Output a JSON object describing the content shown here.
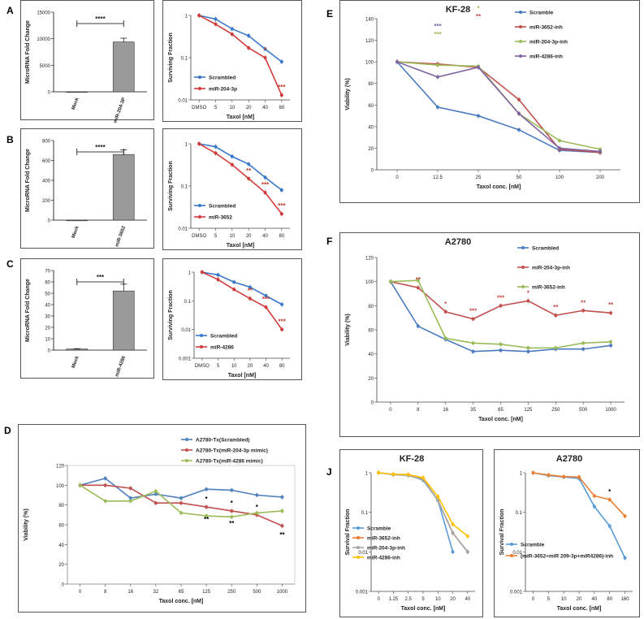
{
  "panel_letters": {
    "A": "A",
    "B": "B",
    "C": "C",
    "D": "D",
    "E": "E",
    "F": "F",
    "J": "J"
  },
  "chart_data": [
    {
      "id": "A1",
      "type": "bar",
      "letter": "A",
      "categories": [
        "Mock",
        "miR-204-3P"
      ],
      "values": [
        0,
        9400
      ],
      "errors": [
        0,
        700
      ],
      "ylabel": "MicroRNA Fold Change",
      "ylim": [
        0,
        15000
      ],
      "yticks": [
        "0",
        "5000",
        "10000",
        "15000"
      ],
      "significance": "****"
    },
    {
      "id": "A2",
      "type": "line",
      "yscale": "log",
      "categories": [
        "DMSO",
        "5",
        "10",
        "20",
        "40",
        "80"
      ],
      "xlabel": "Taxol [nM]",
      "ylabel": "Surviving Fraction",
      "ylim": [
        0.01,
        1
      ],
      "yticks": [
        "0.01",
        "0.1",
        "1"
      ],
      "series": [
        {
          "name": "Scrambled",
          "color": "#3a78c9",
          "values": [
            1,
            0.82,
            0.48,
            0.33,
            0.16,
            0.08
          ]
        },
        {
          "name": "miR-204-3p",
          "color": "#d23b3b",
          "values": [
            1,
            0.62,
            0.36,
            0.17,
            0.1,
            0.013
          ]
        }
      ],
      "annotations": [
        {
          "i": 4,
          "text": "*"
        },
        {
          "i": 5,
          "text": "***"
        }
      ]
    },
    {
      "id": "B1",
      "type": "bar",
      "letter": "B",
      "categories": [
        "Mock",
        "miR-3652"
      ],
      "values": [
        0,
        660
      ],
      "errors": [
        0,
        45
      ],
      "ylabel": "MicroRNA Fold Change",
      "ylim": [
        0,
        800
      ],
      "yticks": [
        "0",
        "200",
        "400",
        "600",
        "800"
      ],
      "significance": "****"
    },
    {
      "id": "B2",
      "type": "line",
      "yscale": "log",
      "categories": [
        "DMSO",
        "5",
        "10",
        "20",
        "40",
        "80"
      ],
      "xlabel": "Taxol [nM]",
      "ylabel": "Surviving Fraction",
      "ylim": [
        0.01,
        1
      ],
      "yticks": [
        "0.01",
        "0.1",
        "1"
      ],
      "series": [
        {
          "name": "Scrambled",
          "color": "#3a78c9",
          "values": [
            1,
            0.85,
            0.5,
            0.33,
            0.16,
            0.08
          ]
        },
        {
          "name": "miR-3652",
          "color": "#d23b3b",
          "values": [
            1,
            0.6,
            0.32,
            0.15,
            0.07,
            0.022
          ]
        }
      ],
      "annotations": [
        {
          "i": 3,
          "text": "**"
        },
        {
          "i": 4,
          "text": "***"
        },
        {
          "i": 5,
          "text": "***"
        }
      ]
    },
    {
      "id": "C1",
      "type": "bar",
      "letter": "C",
      "categories": [
        "Mock",
        "miR-4286"
      ],
      "values": [
        1,
        52
      ],
      "errors": [
        0.3,
        6
      ],
      "ylabel": "MicroRNA Fold Change",
      "ylim": [
        0,
        70
      ],
      "yticks": [
        "0",
        "10",
        "20",
        "30",
        "40",
        "50",
        "60",
        "70"
      ],
      "significance": "***"
    },
    {
      "id": "C2",
      "type": "line",
      "yscale": "log",
      "categories": [
        "DMSO",
        "5",
        "10",
        "20",
        "40",
        "80"
      ],
      "xlabel": "Taxol [nM]",
      "ylabel": "Surviving Fraction",
      "ylim": [
        0.001,
        1
      ],
      "yticks": [
        "0.001",
        "0.01",
        "0.1",
        "1"
      ],
      "series": [
        {
          "name": "Scrambled",
          "color": "#3a78c9",
          "values": [
            1,
            0.8,
            0.45,
            0.3,
            0.15,
            0.075
          ]
        },
        {
          "name": "miR-4286",
          "color": "#d23b3b",
          "values": [
            1,
            0.55,
            0.25,
            0.12,
            0.06,
            0.01
          ]
        }
      ],
      "annotations": [
        {
          "i": 3,
          "text": "**"
        },
        {
          "i": 4,
          "text": "***"
        },
        {
          "i": 5,
          "text": "***"
        }
      ]
    },
    {
      "id": "D",
      "type": "line",
      "letter": "D",
      "categories": [
        "0",
        "8",
        "16",
        "32",
        "65",
        "125",
        "250",
        "500",
        "1000"
      ],
      "xlabel": "Taxol conc. [nM]",
      "ylabel": "Viability (%)",
      "ylim": [
        0,
        120
      ],
      "yticks": [
        "0",
        "20",
        "40",
        "60",
        "80",
        "100",
        "120"
      ],
      "series": [
        {
          "name": "A2780-Tx(Scrambled)",
          "color": "#4f81bd",
          "values": [
            100,
            107,
            87,
            91,
            87,
            96,
            95,
            90,
            88
          ]
        },
        {
          "name": "A2780-Tx(miR-204-3p mimic)",
          "color": "#c0504d",
          "values": [
            100,
            100,
            97,
            82,
            82,
            78,
            74,
            70,
            59
          ]
        },
        {
          "name": "A2780-Tx(miR-4286 mimic)",
          "color": "#9bbb59",
          "values": [
            100,
            84,
            84,
            94,
            72,
            69,
            68,
            72,
            74
          ]
        }
      ],
      "annotations": [
        {
          "i": 5,
          "text": "*",
          "color": "#000"
        },
        {
          "i": 6,
          "text": "*",
          "color": "#000"
        },
        {
          "i": 7,
          "text": "*",
          "color": "#000"
        },
        {
          "i": 5,
          "text": "**",
          "color": "#000",
          "dy": 18
        },
        {
          "i": 6,
          "text": "**",
          "color": "#000",
          "dy": 18
        },
        {
          "i": 8,
          "text": "**",
          "color": "#000",
          "dy": 14
        }
      ]
    },
    {
      "id": "E",
      "type": "line",
      "letter": "E",
      "title": "KF-28",
      "categories": [
        "0",
        "12.5",
        "25",
        "50",
        "100",
        "200"
      ],
      "xlabel": "Taxol conc. [nM]",
      "ylabel": "Viability (%)",
      "ylim": [
        0,
        140
      ],
      "yticks": [
        "0",
        "20",
        "40",
        "60",
        "80",
        "100",
        "120",
        "140"
      ],
      "series": [
        {
          "name": "Scramble",
          "color": "#4a7bbf",
          "values": [
            100,
            58,
            50,
            37,
            18,
            16
          ]
        },
        {
          "name": "miR-3652-inh",
          "color": "#c0504d",
          "values": [
            100,
            98,
            95,
            65,
            19,
            16
          ]
        },
        {
          "name": "miR-204-3p-inh",
          "color": "#9bbb59",
          "values": [
            100,
            97,
            96,
            52,
            27,
            19
          ]
        },
        {
          "name": "miR-4286-inh",
          "color": "#8064a2",
          "values": [
            100,
            86,
            95,
            52,
            20,
            17
          ]
        }
      ],
      "annotations": [
        {
          "i": 1,
          "text": "***",
          "color": "#8064a2",
          "dy": -44
        },
        {
          "i": 1,
          "text": "***",
          "color": "#9bbb59",
          "dy": -34
        },
        {
          "i": 2,
          "text": "***",
          "color": "#8064a2",
          "dy": -80
        },
        {
          "i": 2,
          "text": "*",
          "color": "#9bbb59",
          "dy": -70
        },
        {
          "i": 2,
          "text": "**",
          "color": "#c0504d",
          "dy": -60
        }
      ]
    },
    {
      "id": "F",
      "type": "line",
      "letter": "F",
      "title": "A2780",
      "categories": [
        "0",
        "8",
        "16",
        "35",
        "65",
        "125",
        "250",
        "500",
        "1000"
      ],
      "xlabel": "Taxol conc. [nM]",
      "ylabel": "Viability (%)",
      "ylim": [
        0,
        120
      ],
      "yticks": [
        "0",
        "20",
        "40",
        "60",
        "80",
        "100",
        "120"
      ],
      "series": [
        {
          "name": "Scrambled",
          "color": "#4a7bbf",
          "values": [
            100,
            63,
            52,
            42,
            43,
            42,
            44,
            44,
            47
          ]
        },
        {
          "name": "miR-204-3p-inh",
          "color": "#c0504d",
          "values": [
            100,
            95,
            75,
            69,
            80,
            84,
            72,
            76,
            74
          ]
        },
        {
          "name": "miR-3652-inh",
          "color": "#9bbb59",
          "values": [
            100,
            101,
            53,
            49,
            48,
            45,
            45,
            49,
            50
          ]
        }
      ],
      "annotations": [
        {
          "i": 1,
          "text": "**",
          "color": "#c0504d"
        },
        {
          "i": 2,
          "text": "*",
          "color": "#c0504d"
        },
        {
          "i": 3,
          "text": "***",
          "color": "#c0504d"
        },
        {
          "i": 4,
          "text": "***",
          "color": "#c0504d"
        },
        {
          "i": 5,
          "text": "*",
          "color": "#c0504d"
        },
        {
          "i": 6,
          "text": "**",
          "color": "#c0504d"
        },
        {
          "i": 7,
          "text": "**",
          "color": "#c0504d"
        },
        {
          "i": 8,
          "text": "**",
          "color": "#c0504d"
        }
      ]
    },
    {
      "id": "J1",
      "type": "line",
      "letter": "J",
      "yscale": "log",
      "title": "KF-28",
      "categories": [
        "0",
        "1.25",
        "2.5",
        "5",
        "10",
        "20",
        "40"
      ],
      "xlabel": "Taxol conc. [nM]",
      "ylabel": "Survival Fraction",
      "ylim": [
        0.001,
        1
      ],
      "yticks": [
        "0.001",
        "0.01",
        "0.1",
        "1"
      ],
      "series": [
        {
          "name": "Scramble",
          "color": "#5b9bd5",
          "values": [
            1,
            0.9,
            0.88,
            0.65,
            0.2,
            0.01,
            null
          ]
        },
        {
          "name": "miR-3652-inh",
          "color": "#ed7d31",
          "values": [
            1,
            0.9,
            0.9,
            0.7,
            0.2,
            0.03,
            0.01
          ]
        },
        {
          "name": "miR-204-3p-inh",
          "color": "#a5a5a5",
          "values": [
            1,
            0.9,
            0.85,
            0.68,
            0.2,
            0.03,
            0.01
          ]
        },
        {
          "name": "miR-4286-inh",
          "color": "#ffc000",
          "values": [
            1,
            0.92,
            0.9,
            0.75,
            0.25,
            0.05,
            0.025
          ]
        }
      ]
    },
    {
      "id": "J2",
      "type": "line",
      "yscale": "log",
      "title": "A2780",
      "categories": [
        "0",
        "5",
        "10",
        "20",
        "40",
        "80",
        "160"
      ],
      "xlabel": "Taxol conc. [nM]",
      "ylabel": "Survival Fraction",
      "ylim": [
        0.001,
        1
      ],
      "yticks": [
        "0.001",
        "0.01",
        "0.1",
        "1"
      ],
      "series": [
        {
          "name": "Scramble",
          "color": "#5b9bd5",
          "values": [
            1,
            0.85,
            0.78,
            0.72,
            0.14,
            0.045,
            0.007
          ]
        },
        {
          "name": "(miR-3652+miR 209-3p+miR4286)-inh",
          "color": "#ed7d31",
          "values": [
            1,
            0.88,
            0.8,
            0.78,
            0.26,
            0.21,
            0.08
          ]
        }
      ],
      "annotations": [
        {
          "i": 5,
          "text": "*",
          "color": "#000"
        }
      ]
    }
  ]
}
